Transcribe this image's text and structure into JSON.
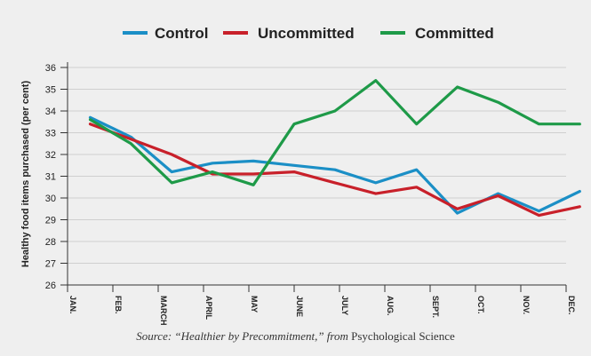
{
  "chart_data": {
    "type": "line",
    "xlabel": "",
    "ylabel": "Healthy food items purchased (per cent)",
    "ylim": [
      26,
      36
    ],
    "yticks": [
      26,
      27,
      28,
      29,
      30,
      31,
      32,
      33,
      34,
      35,
      36
    ],
    "categories": [
      "JAN.",
      "FEB.",
      "MARCH",
      "APRIL",
      "MAY",
      "JUNE",
      "JULY",
      "AUG.",
      "SEPT.",
      "OCT.",
      "NOV.",
      "DEC."
    ],
    "x": [
      0.5,
      1.4,
      2.3,
      3.2,
      4.1,
      5.0,
      5.9,
      6.8,
      7.7,
      8.6,
      9.5,
      10.4,
      11.3
    ],
    "series": [
      {
        "name": "Control",
        "color": "#1b8fc6",
        "values": [
          33.7,
          32.8,
          31.2,
          31.6,
          31.7,
          31.5,
          31.3,
          30.7,
          31.3,
          29.3,
          30.2,
          29.4,
          30.3
        ]
      },
      {
        "name": "Uncommitted",
        "color": "#c8202a",
        "values": [
          33.4,
          32.7,
          32.0,
          31.1,
          31.1,
          31.2,
          30.7,
          30.2,
          30.5,
          29.5,
          30.1,
          29.2,
          29.6
        ]
      },
      {
        "name": "Committed",
        "color": "#1e9a48",
        "values": [
          33.6,
          32.5,
          30.7,
          31.2,
          30.6,
          33.4,
          34.0,
          35.4,
          33.4,
          35.1,
          34.4,
          33.4,
          33.4
        ]
      }
    ],
    "grid": true,
    "legend": "top"
  },
  "source": {
    "prefix": "Source: “Healthier by Precommitment,” from ",
    "journal": "Psychological Science"
  }
}
